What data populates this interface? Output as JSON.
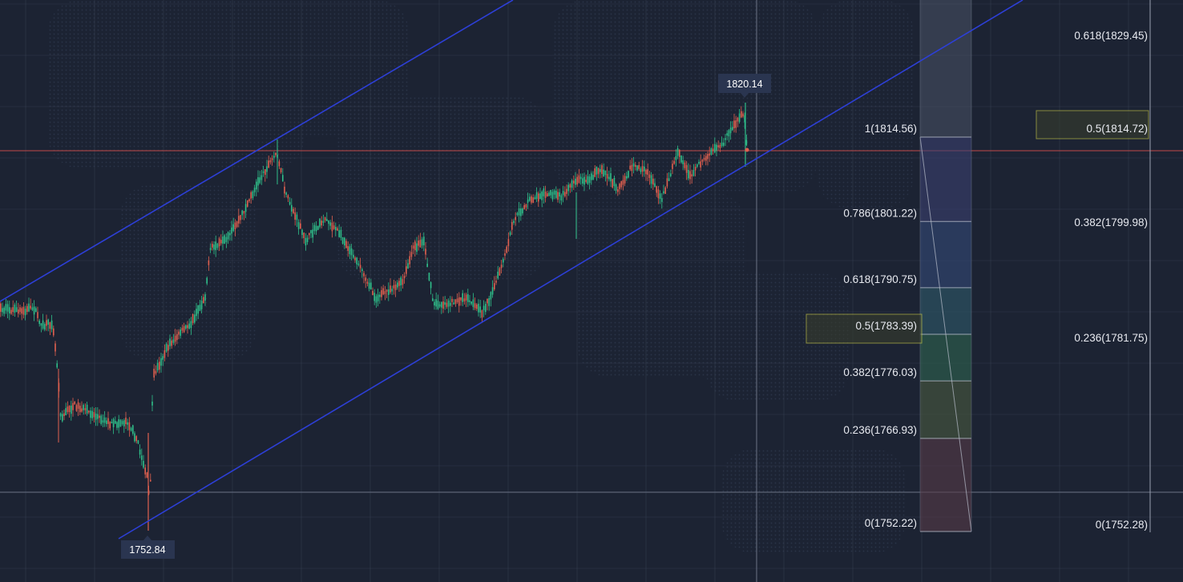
{
  "chart_data": {
    "type": "candlestick",
    "high_label": "1820.14",
    "low_label": "1752.84",
    "fib_left": {
      "levels": [
        {
          "ratio": "1",
          "price": 1814.56,
          "text": "1(1814.56)"
        },
        {
          "ratio": "0.786",
          "price": 1801.22,
          "text": "0.786(1801.22)"
        },
        {
          "ratio": "0.618",
          "price": 1790.75,
          "text": "0.618(1790.75)"
        },
        {
          "ratio": "0.5",
          "price": 1783.39,
          "text": "0.5(1783.39)"
        },
        {
          "ratio": "0.382",
          "price": 1776.03,
          "text": "0.382(1776.03)"
        },
        {
          "ratio": "0.236",
          "price": 1766.93,
          "text": "0.236(1766.93)"
        },
        {
          "ratio": "0",
          "price": 1752.22,
          "text": "0(1752.22)"
        }
      ],
      "highlight": "0.5"
    },
    "fib_right": {
      "levels": [
        {
          "ratio": "0.618",
          "price": 1829.45,
          "text": "0.618(1829.45)"
        },
        {
          "ratio": "0.5",
          "price": 1814.72,
          "text": "0.5(1814.72)"
        },
        {
          "ratio": "0.382",
          "price": 1799.98,
          "text": "0.382(1799.98)"
        },
        {
          "ratio": "0.236",
          "price": 1781.75,
          "text": "0.236(1781.75)"
        },
        {
          "ratio": "0",
          "price": 1752.28,
          "text": "0(1752.28)"
        }
      ],
      "highlight": "0.5"
    },
    "channel": "ascending parallel channel",
    "grid": true
  },
  "colors": {
    "background": "#1c2333",
    "grid": "#3a4356",
    "up": "#2fbf8a",
    "down": "#e0604f",
    "channel": "#2d3fd6",
    "tag_bg": "#2a3550",
    "highlight": "#e3e04a",
    "current_price_line": "#c24a4a"
  }
}
